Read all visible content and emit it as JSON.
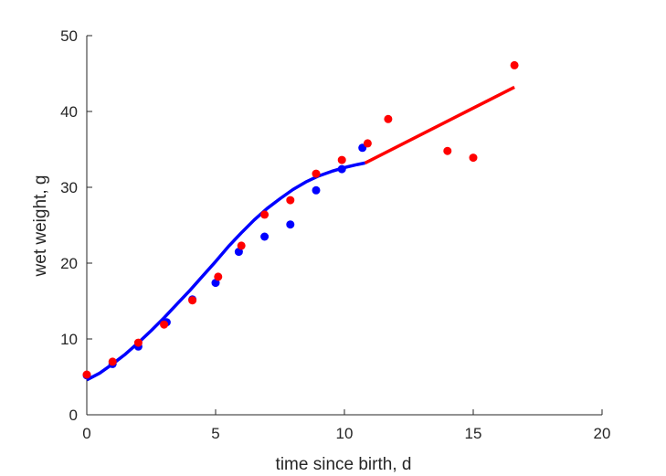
{
  "chart_data": {
    "type": "scatter",
    "xlabel": "time since birth, d",
    "ylabel": "wet weight, g",
    "xlim": [
      0,
      20
    ],
    "ylim": [
      0,
      50
    ],
    "xticks": [
      0,
      5,
      10,
      15,
      20
    ],
    "yticks": [
      0,
      10,
      20,
      30,
      40,
      50
    ],
    "grid": false,
    "box": "left-bottom",
    "series": [
      {
        "color": "#0000ff",
        "kind": "points",
        "x": [
          0.0,
          1.0,
          2.0,
          3.1,
          4.1,
          5.0,
          5.9,
          6.9,
          7.9,
          8.9,
          9.9,
          10.7
        ],
        "y": [
          5.2,
          6.7,
          9.0,
          12.2,
          15.2,
          17.4,
          21.5,
          23.5,
          25.1,
          29.6,
          32.4,
          35.2
        ]
      },
      {
        "color": "#ff0000",
        "kind": "points",
        "x": [
          0.0,
          1.0,
          2.0,
          3.0,
          4.1,
          5.1,
          6.0,
          6.9,
          7.9,
          8.9,
          9.9,
          10.9,
          11.7,
          14.0,
          15.0,
          16.6
        ],
        "y": [
          5.3,
          7.0,
          9.5,
          11.9,
          15.1,
          18.2,
          22.3,
          26.4,
          28.3,
          31.8,
          33.6,
          35.8,
          39.0,
          34.8,
          33.9,
          46.1
        ]
      },
      {
        "color": "#0000ff",
        "kind": "line",
        "x": [
          0,
          0.5,
          1,
          1.5,
          2,
          2.5,
          3,
          3.5,
          4,
          4.5,
          5,
          5.5,
          6,
          6.5,
          7,
          7.5,
          8,
          8.5,
          9,
          9.5,
          10,
          10.5,
          10.8
        ],
        "y": [
          4.6,
          5.5,
          6.7,
          8.0,
          9.5,
          11.1,
          12.8,
          14.6,
          16.4,
          18.3,
          20.2,
          22.2,
          24.0,
          25.7,
          27.2,
          28.5,
          29.7,
          30.7,
          31.5,
          32.1,
          32.6,
          33.0,
          33.2
        ]
      },
      {
        "color": "#ff0000",
        "kind": "line",
        "x": [
          10.8,
          16.6
        ],
        "y": [
          33.2,
          43.2
        ]
      }
    ]
  }
}
